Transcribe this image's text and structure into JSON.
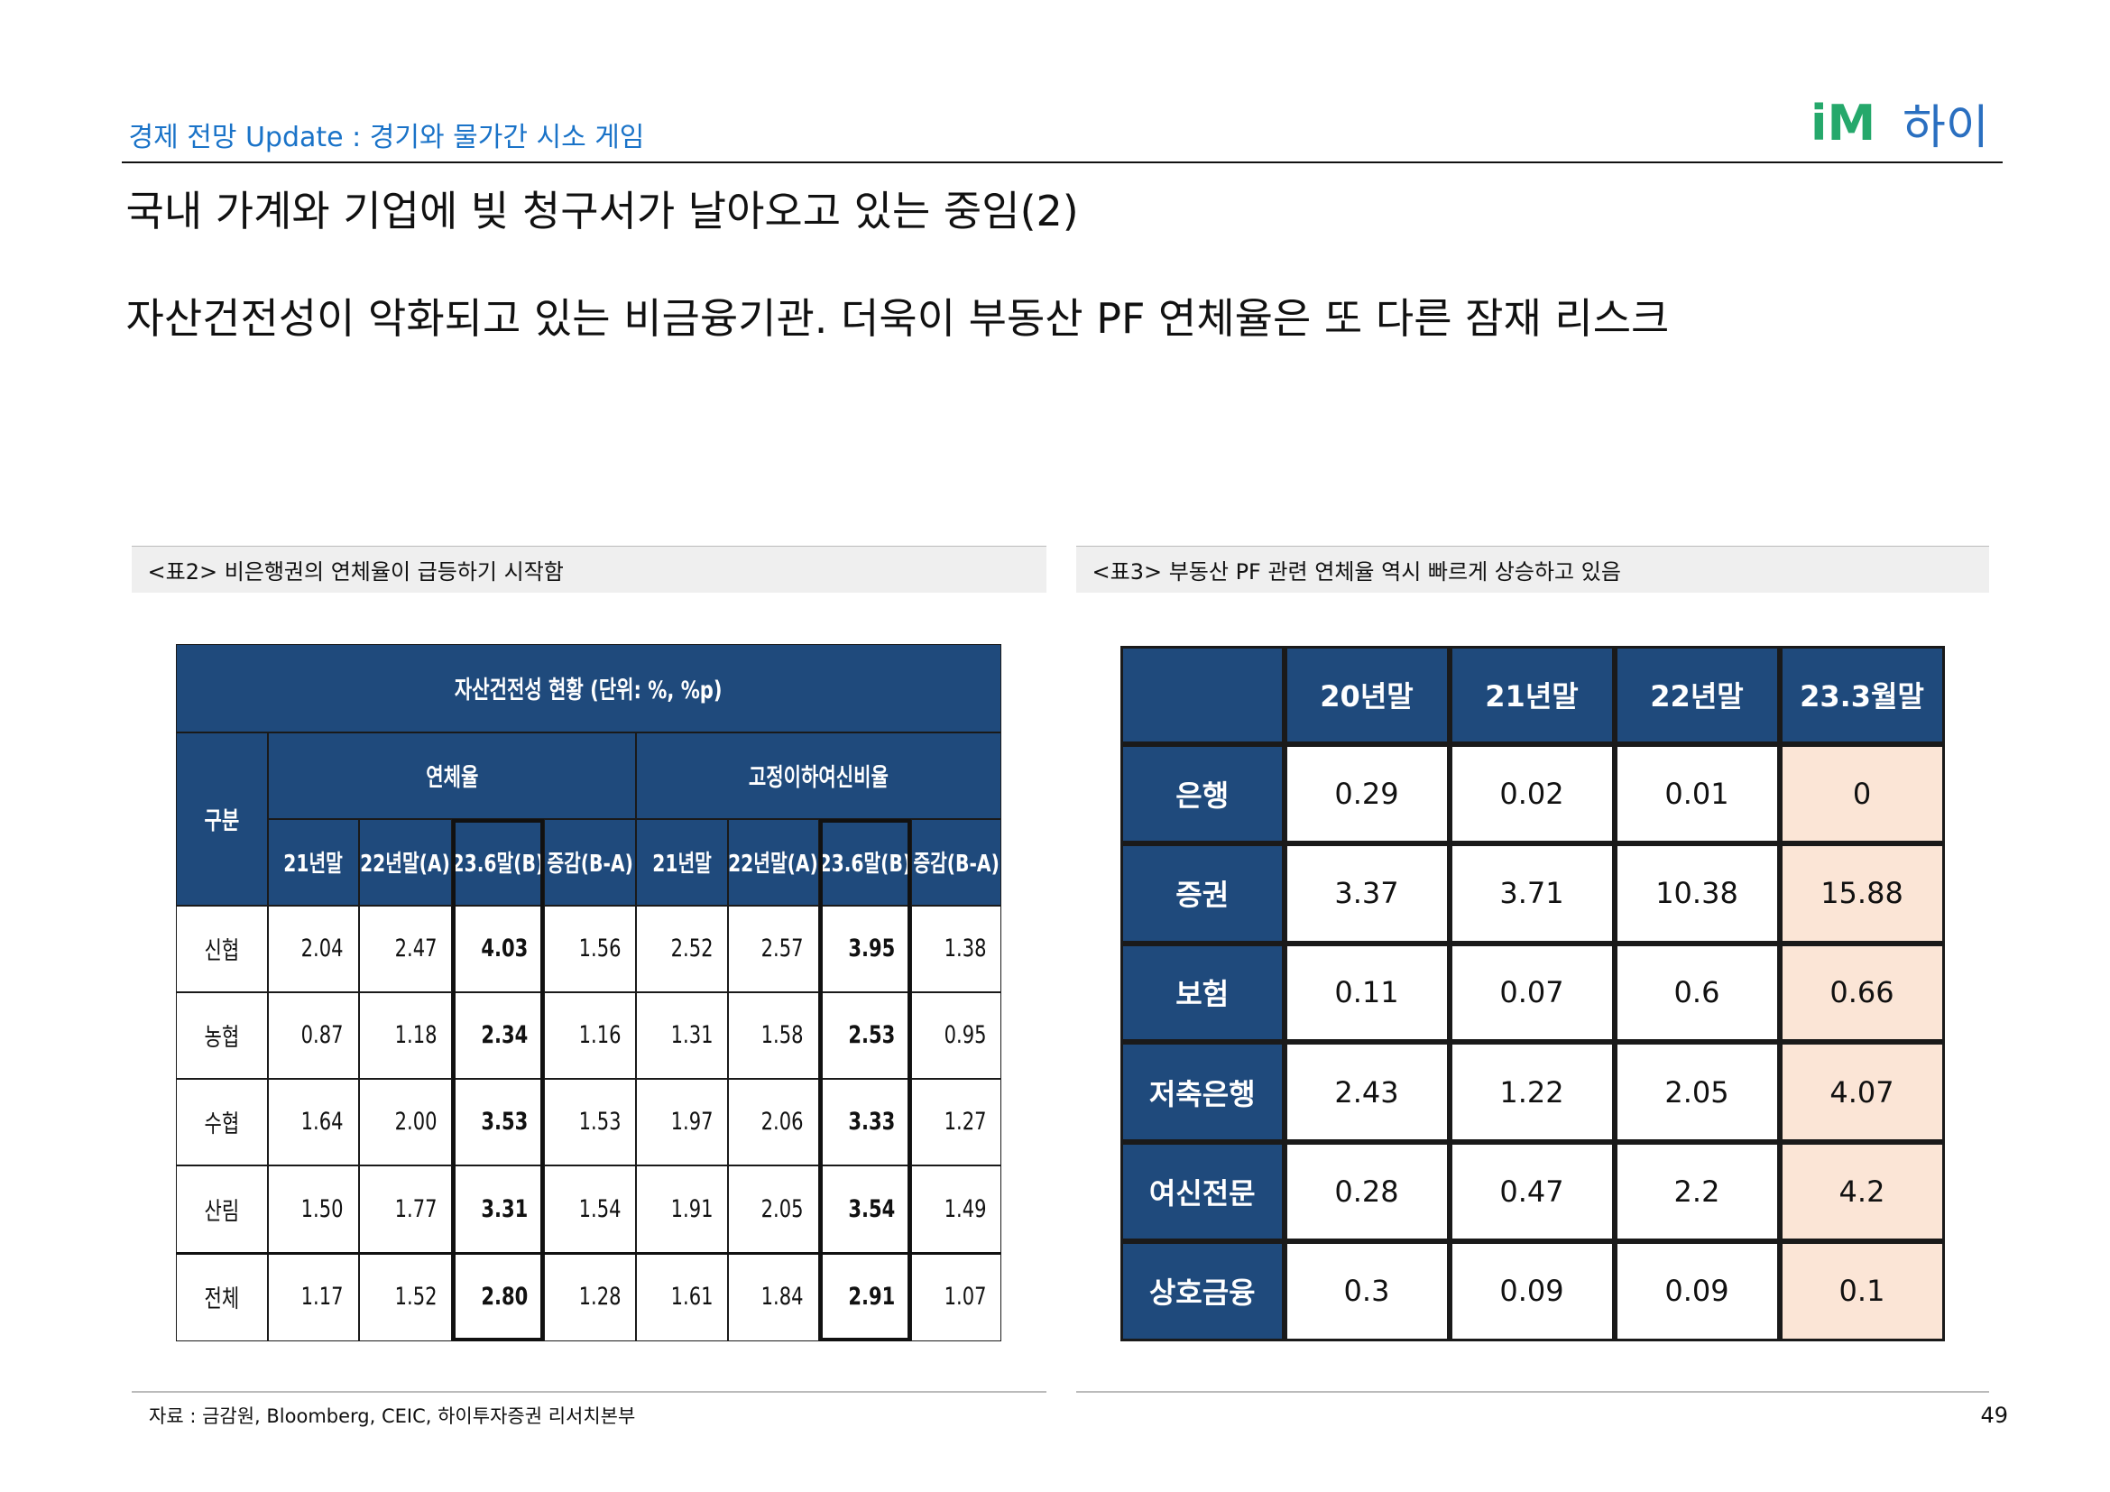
{
  "header": {
    "section": "경제 전망 Update : 경기와 물가간 시소 게임",
    "logo_mark": "iM",
    "logo_text": "하이",
    "title": "국내 가계와 기업에 빚 청구서가 날아오고 있는 중임(2)",
    "subtitle": "자산건전성이 악화되고 있는 비금융기관. 더욱이 부동산 PF 연체율은 또 다른 잠재 리스크"
  },
  "table1": {
    "caption": "<표2> 비은행권의 연체율이 급등하기 시작함",
    "title": "자산건전성 현황 (단위: %, %p)",
    "row_header": "구분",
    "groups": [
      "연체율",
      "고정이하여신비율"
    ],
    "columns": [
      "21년말",
      "22년말(A)",
      "23.6말(B)",
      "증감(B-A)",
      "21년말",
      "22년말(A)",
      "23.6말(B)",
      "증감(B-A)"
    ],
    "rows": [
      [
        "신협",
        "2.04",
        "2.47",
        "4.03",
        "1.56",
        "2.52",
        "2.57",
        "3.95",
        "1.38"
      ],
      [
        "농협",
        "0.87",
        "1.18",
        "2.34",
        "1.16",
        "1.31",
        "1.58",
        "2.53",
        "0.95"
      ],
      [
        "수협",
        "1.64",
        "2.00",
        "3.53",
        "1.53",
        "1.97",
        "2.06",
        "3.33",
        "1.27"
      ],
      [
        "산림",
        "1.50",
        "1.77",
        "3.31",
        "1.54",
        "1.91",
        "2.05",
        "3.54",
        "1.49"
      ],
      [
        "전체",
        "1.17",
        "1.52",
        "2.80",
        "1.28",
        "1.61",
        "1.84",
        "2.91",
        "1.07"
      ]
    ]
  },
  "table2": {
    "caption": "<표3> 부동산 PF 관련 연체율 역시 빠르게 상승하고 있음",
    "columns": [
      "20년말",
      "21년말",
      "22년말",
      "23.3월말"
    ],
    "rows": [
      [
        "은행",
        "0.29",
        "0.02",
        "0.01",
        "0"
      ],
      [
        "증권",
        "3.37",
        "3.71",
        "10.38",
        "15.88"
      ],
      [
        "보험",
        "0.11",
        "0.07",
        "0.6",
        "0.66"
      ],
      [
        "저축은행",
        "2.43",
        "1.22",
        "2.05",
        "4.07"
      ],
      [
        "여신전문",
        "0.28",
        "0.47",
        "2.2",
        "4.2"
      ],
      [
        "상호금융",
        "0.3",
        "0.09",
        "0.09",
        "0.1"
      ]
    ]
  },
  "footer": {
    "source": "자료 : 금감원, Bloomberg, CEIC, 하이투자증권 리서치본부",
    "page": "49"
  }
}
